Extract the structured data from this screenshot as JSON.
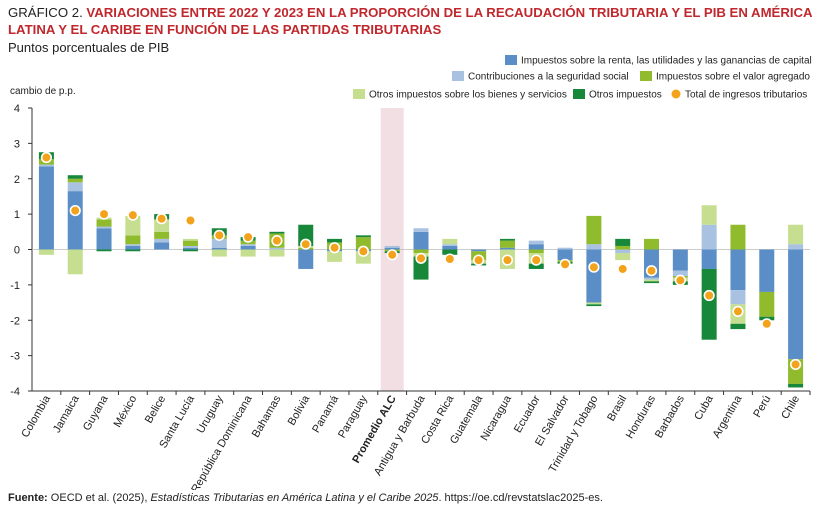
{
  "header": {
    "label": "GRÁFICO 2.",
    "title": "VARIACIONES ENTRE 2022 Y 2023 EN LA PROPORCIÓN DE LA RECAUDACIÓN TRIBUTARIA Y EL PIB EN AMÉRICA LATINA Y EL CARIBE EN FUNCIÓN DE LAS PARTIDAS TRIBUTARIAS",
    "subtitle": "Puntos porcentuales de PIB"
  },
  "footer": {
    "source_label": "Fuente:",
    "source_text_1": "OECD et al. (2025),",
    "source_italic": "Estadísticas Tributarias en América Latina y el Caribe 2025",
    "source_text_2": ". https://oe.cd/revstatslac2025-es."
  },
  "chart_data": {
    "type": "bar",
    "ylabel": "cambio de p.p.",
    "ylim": [
      -4,
      4
    ],
    "yticks": [
      -4,
      -3,
      -2,
      -1,
      0,
      1,
      2,
      3,
      4
    ],
    "legend_position": "top-right",
    "highlight_category": "Promedio ALC",
    "highlight_color": "#f2dfe3",
    "categories": [
      "Colombia",
      "Jamaica",
      "Guyana",
      "México",
      "Belice",
      "Santa Lucía",
      "Uruguay",
      "República Dominicana",
      "Bahamas",
      "Bolivia",
      "Panamá",
      "Paraguay",
      "Promedio ALC",
      "Antigua y Barbuda",
      "Costa Rica",
      "Guatemala",
      "Nicaragua",
      "Ecuador",
      "El Salvador",
      "Trinidad y Tobago",
      "Brasil",
      "Honduras",
      "Barbados",
      "Cuba",
      "Argentina",
      "Perú",
      "Chile"
    ],
    "series": [
      {
        "name": "Impuestos sobre la renta, las utilidades y las ganancias de capital",
        "color": "#5b8ec6",
        "values": [
          2.35,
          1.65,
          0.6,
          0.1,
          0.2,
          0.05,
          0.05,
          0.1,
          0.0,
          -0.55,
          -0.05,
          -0.05,
          0.05,
          0.5,
          0.1,
          -0.05,
          0.05,
          0.15,
          -0.3,
          -1.5,
          0.0,
          -0.8,
          -0.6,
          -0.55,
          -1.15,
          -1.2,
          -3.1
        ]
      },
      {
        "name": "Contribuciones a la seguridad social",
        "color": "#a9c2e1",
        "values": [
          0.05,
          0.25,
          0.05,
          0.05,
          0.1,
          0.05,
          0.25,
          0.05,
          0.05,
          0.0,
          0.0,
          0.0,
          0.05,
          0.1,
          0.05,
          0.0,
          0.0,
          0.1,
          0.05,
          0.15,
          -0.1,
          -0.05,
          -0.15,
          0.7,
          -0.4,
          0.0,
          0.15
        ]
      },
      {
        "name": "Impuestos sobre el valor agregado",
        "color": "#8fbb2d",
        "values": [
          0.15,
          0.1,
          0.2,
          0.25,
          0.2,
          0.15,
          0.1,
          0.1,
          0.4,
          0.05,
          0.2,
          0.35,
          -0.05,
          -0.1,
          0.0,
          -0.25,
          0.2,
          -0.1,
          -0.05,
          0.8,
          0.1,
          0.3,
          -0.05,
          0.0,
          0.7,
          -0.7,
          -0.7
        ]
      },
      {
        "name": "Otros impuestos sobre los bienes y servicios",
        "color": "#c5de90",
        "values": [
          -0.15,
          -0.7,
          0.05,
          0.55,
          0.35,
          0.05,
          -0.2,
          -0.2,
          -0.2,
          0.05,
          -0.3,
          -0.35,
          0.0,
          -0.1,
          0.15,
          -0.1,
          -0.55,
          -0.3,
          0.0,
          -0.05,
          -0.2,
          -0.05,
          -0.1,
          0.55,
          -0.55,
          0.0,
          0.55
        ]
      },
      {
        "name": "Otros impuestos",
        "color": "#17873a",
        "values": [
          0.2,
          0.1,
          -0.05,
          -0.05,
          0.15,
          -0.05,
          0.2,
          0.1,
          0.05,
          0.6,
          0.1,
          0.05,
          -0.05,
          -0.65,
          -0.15,
          -0.05,
          0.05,
          -0.15,
          -0.05,
          -0.05,
          0.2,
          -0.05,
          -0.1,
          -2.0,
          -0.15,
          -0.1,
          -0.1
        ]
      }
    ],
    "total": {
      "name": "Total de ingresos tributarios",
      "color": "#f2a31b",
      "values": [
        2.6,
        1.1,
        1.0,
        0.97,
        0.87,
        0.82,
        0.4,
        0.35,
        0.25,
        0.15,
        0.05,
        -0.05,
        -0.15,
        -0.25,
        -0.27,
        -0.3,
        -0.3,
        -0.3,
        -0.42,
        -0.5,
        -0.55,
        -0.6,
        -0.87,
        -1.3,
        -1.75,
        -2.1,
        -3.25
      ]
    }
  }
}
